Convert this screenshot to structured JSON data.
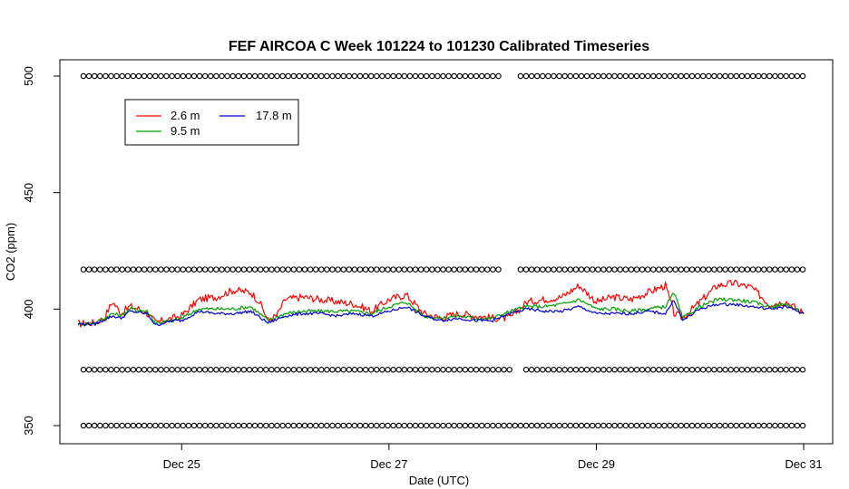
{
  "chart_data": {
    "type": "line",
    "title": "FEF AIRCOA C  Week 101224 to 101230  Calibrated Timeseries",
    "xlabel": "Date (UTC)",
    "ylabel": "CO2 (ppm)",
    "xlim": [
      "2010-12-24T00:00",
      "2010-12-31T00:00"
    ],
    "ylim": [
      350,
      500
    ],
    "grid": false,
    "legend_position": "top-left",
    "x_ticks": [
      {
        "date": "2010-12-25T00:00",
        "label": "Dec 25"
      },
      {
        "date": "2010-12-27T00:00",
        "label": "Dec 27"
      },
      {
        "date": "2010-12-29T00:00",
        "label": "Dec 29"
      },
      {
        "date": "2010-12-31T00:00",
        "label": "Dec 31"
      }
    ],
    "y_ticks": [
      {
        "value": 350,
        "label": "350"
      },
      {
        "value": 400,
        "label": "400"
      },
      {
        "value": 450,
        "label": "450"
      },
      {
        "value": 500,
        "label": "500"
      }
    ],
    "series": [
      {
        "name": "2.6 m",
        "color": "#ff0000",
        "x": [
          "2010-12-24T00:00",
          "2010-12-24T04:00",
          "2010-12-24T06:00",
          "2010-12-24T08:00",
          "2010-12-24T10:00",
          "2010-12-24T12:00",
          "2010-12-24T14:00",
          "2010-12-24T16:00",
          "2010-12-24T18:00",
          "2010-12-24T20:00",
          "2010-12-24T22:00",
          "2010-12-25T00:00",
          "2010-12-25T04:00",
          "2010-12-25T08:00",
          "2010-12-25T12:00",
          "2010-12-25T16:00",
          "2010-12-25T18:00",
          "2010-12-25T20:00",
          "2010-12-25T22:00",
          "2010-12-26T00:00",
          "2010-12-26T04:00",
          "2010-12-26T08:00",
          "2010-12-26T12:00",
          "2010-12-26T16:00",
          "2010-12-26T20:00",
          "2010-12-27T00:00",
          "2010-12-27T04:00",
          "2010-12-27T08:00",
          "2010-12-27T12:00",
          "2010-12-27T16:00",
          "2010-12-27T20:00",
          "2010-12-28T00:00",
          "2010-12-28T04:00",
          "2010-12-28T08:00",
          "2010-12-28T12:00",
          "2010-12-28T16:00",
          "2010-12-28T20:00",
          "2010-12-29T00:00",
          "2010-12-29T04:00",
          "2010-12-29T08:00",
          "2010-12-29T12:00",
          "2010-12-29T16:00",
          "2010-12-29T18:00",
          "2010-12-29T20:00",
          "2010-12-30T00:00",
          "2010-12-30T04:00",
          "2010-12-30T08:00",
          "2010-12-30T12:00",
          "2010-12-30T16:00",
          "2010-12-30T20:00",
          "2010-12-31T00:00"
        ],
        "values": [
          393.5,
          394,
          396,
          403,
          398,
          401,
          400,
          398,
          394,
          395,
          396,
          397,
          404,
          405,
          408,
          407,
          403,
          395,
          397,
          404,
          405,
          404,
          403,
          402,
          399,
          404,
          406,
          398,
          396,
          398,
          397,
          396,
          396,
          403,
          404,
          405,
          410,
          403,
          405,
          404,
          407,
          410,
          398,
          396,
          403,
          410,
          411,
          409,
          402,
          403,
          398
        ]
      },
      {
        "name": "9.5 m",
        "color": "#00a000",
        "x": [
          "2010-12-24T00:00",
          "2010-12-24T04:00",
          "2010-12-24T08:00",
          "2010-12-24T10:00",
          "2010-12-24T12:00",
          "2010-12-24T16:00",
          "2010-12-24T18:00",
          "2010-12-24T22:00",
          "2010-12-25T00:00",
          "2010-12-25T04:00",
          "2010-12-25T08:00",
          "2010-12-25T12:00",
          "2010-12-25T16:00",
          "2010-12-25T20:00",
          "2010-12-26T00:00",
          "2010-12-26T04:00",
          "2010-12-26T08:00",
          "2010-12-26T12:00",
          "2010-12-26T16:00",
          "2010-12-26T20:00",
          "2010-12-27T00:00",
          "2010-12-27T04:00",
          "2010-12-27T08:00",
          "2010-12-27T12:00",
          "2010-12-27T16:00",
          "2010-12-27T20:00",
          "2010-12-28T00:00",
          "2010-12-28T04:00",
          "2010-12-28T08:00",
          "2010-12-28T12:00",
          "2010-12-28T16:00",
          "2010-12-28T20:00",
          "2010-12-29T00:00",
          "2010-12-29T04:00",
          "2010-12-29T08:00",
          "2010-12-29T12:00",
          "2010-12-29T16:00",
          "2010-12-29T18:00",
          "2010-12-29T20:00",
          "2010-12-30T00:00",
          "2010-12-30T04:00",
          "2010-12-30T08:00",
          "2010-12-30T12:00",
          "2010-12-30T16:00",
          "2010-12-30T20:00",
          "2010-12-31T00:00"
        ],
        "values": [
          393.5,
          394,
          398,
          397,
          400,
          399,
          394,
          395,
          396,
          400,
          400,
          400,
          401,
          395,
          398,
          399,
          399,
          399,
          399,
          398,
          401,
          403,
          397,
          396,
          397,
          396,
          396,
          399,
          401,
          401,
          402,
          404,
          400,
          400,
          399,
          400,
          401,
          407,
          396,
          401,
          404,
          404,
          403,
          401,
          402,
          398
        ]
      },
      {
        "name": "17.8 m",
        "color": "#0000cc",
        "x": [
          "2010-12-24T00:00",
          "2010-12-24T04:00",
          "2010-12-24T08:00",
          "2010-12-24T10:00",
          "2010-12-24T12:00",
          "2010-12-24T16:00",
          "2010-12-24T18:00",
          "2010-12-24T22:00",
          "2010-12-25T00:00",
          "2010-12-25T04:00",
          "2010-12-25T08:00",
          "2010-12-25T12:00",
          "2010-12-25T16:00",
          "2010-12-25T20:00",
          "2010-12-26T00:00",
          "2010-12-26T04:00",
          "2010-12-26T08:00",
          "2010-12-26T12:00",
          "2010-12-26T16:00",
          "2010-12-26T20:00",
          "2010-12-27T00:00",
          "2010-12-27T04:00",
          "2010-12-27T08:00",
          "2010-12-27T12:00",
          "2010-12-27T16:00",
          "2010-12-27T20:00",
          "2010-12-28T00:00",
          "2010-12-28T04:00",
          "2010-12-28T08:00",
          "2010-12-28T12:00",
          "2010-12-28T16:00",
          "2010-12-28T20:00",
          "2010-12-29T00:00",
          "2010-12-29T04:00",
          "2010-12-29T08:00",
          "2010-12-29T12:00",
          "2010-12-29T16:00",
          "2010-12-29T18:00",
          "2010-12-29T20:00",
          "2010-12-30T00:00",
          "2010-12-30T04:00",
          "2010-12-30T08:00",
          "2010-12-30T12:00",
          "2010-12-30T16:00",
          "2010-12-30T20:00",
          "2010-12-31T00:00"
        ],
        "values": [
          393.5,
          393.5,
          397,
          396,
          399,
          398,
          393,
          395,
          395,
          399,
          398,
          398,
          399,
          394,
          397,
          398,
          398,
          397,
          398,
          397,
          399,
          401,
          397,
          395,
          396,
          395,
          395,
          398,
          400,
          399,
          399,
          401,
          398,
          398,
          398,
          399,
          398,
          404,
          395,
          400,
          402,
          402,
          401,
          400,
          401,
          398
        ]
      }
    ],
    "flag_markers": [
      {
        "level": 500,
        "symbol": "o"
      },
      {
        "level": 417,
        "symbol": "o"
      },
      {
        "level": 374,
        "symbol": "o"
      },
      {
        "level": 350,
        "symbol": "o"
      }
    ]
  }
}
